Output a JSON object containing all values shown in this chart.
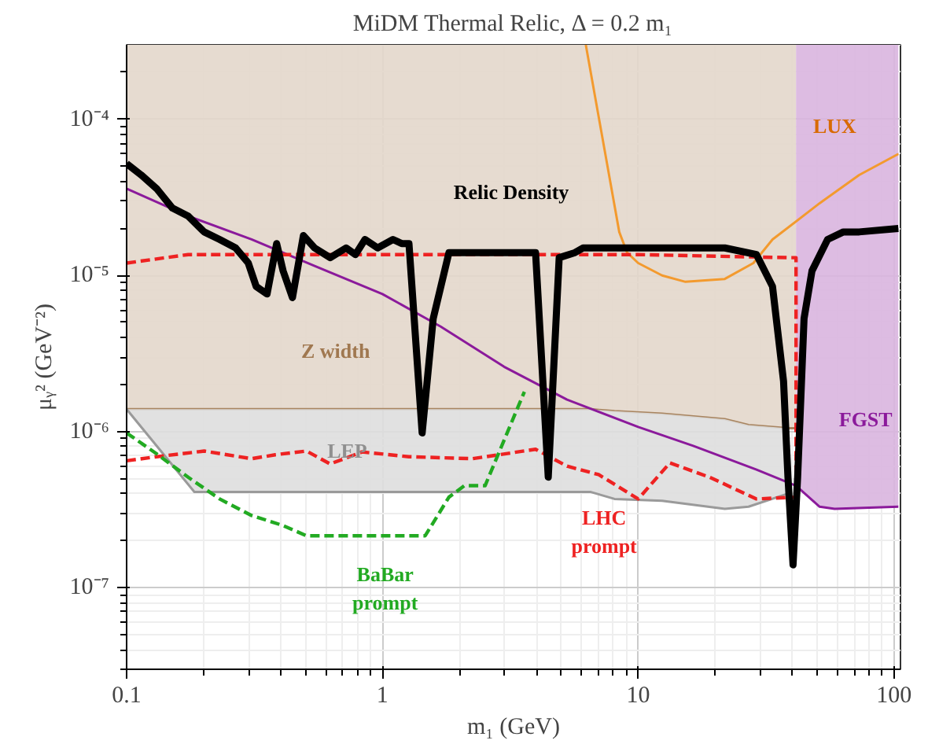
{
  "chart_data": {
    "type": "line",
    "title": "MiDM Thermal Relic, Δ = 0.2 m₁",
    "xlabel": "m₁ (GeV)",
    "ylabel": "μᵧ² (GeV⁻²)",
    "log": "xy",
    "grid": true,
    "xlim": [
      0.1,
      106
    ],
    "ylim": [
      3e-08,
      0.0003
    ],
    "xticks": [
      {
        "value": 0.1,
        "label": "0.1"
      },
      1,
      10,
      100
    ],
    "yticks": [
      {
        "value": 1e-07,
        "label": "10⁻⁷"
      },
      {
        "value": 1e-06,
        "label": "10⁻⁶"
      },
      {
        "value": 1e-05,
        "label": "10⁻⁵"
      },
      {
        "value": 0.0001,
        "label": "10⁻⁴"
      }
    ],
    "series": [
      {
        "color": "#a8845f",
        "line_style": "solid",
        "x": [
          0.1,
          0.184,
          6.53,
          8.08,
          12.4,
          21.8,
          27.0,
          38.5,
          41.4
        ],
        "values": [
          1.39e-06,
          1.39e-06,
          1.39e-06,
          1.35e-06,
          1.3e-06,
          1.2e-06,
          1.1e-06,
          1.05e-06,
          1.05e-06
        ],
        "lower": [
          1.39e-06,
          1.39e-06,
          1.39e-06,
          1.35e-06,
          1.3e-06,
          1.2e-06,
          1.1e-06,
          1.05e-06,
          1.05e-06
        ],
        "upper": [
          0.0003,
          0.0003,
          0.0003,
          0.0003,
          0.0003,
          0.0003,
          0.0003,
          0.0003,
          0.0003
        ]
      },
      {
        "color": "#9a9a9a",
        "line_style": "solid",
        "x": [
          0.1,
          0.184,
          6.53,
          8.08,
          12.4,
          21.8,
          27.0,
          38.5
        ],
        "values": [
          1.39e-06,
          4.1e-07,
          4.1e-07,
          3.7e-07,
          3.6e-07,
          3.2e-07,
          3.3e-07,
          4e-07
        ],
        "lower": [
          1.39e-06,
          4.1e-07,
          4.1e-07,
          3.7e-07,
          3.6e-07,
          3.2e-07,
          3.3e-07,
          4e-07
        ],
        "upper": [
          1.39e-06,
          1.39e-06,
          1.39e-06,
          1.35e-06,
          1.3e-06,
          1.2e-06,
          1.1e-06,
          1.05e-06
        ]
      },
      {
        "color": "#8b1a9b",
        "line_style": "solid",
        "x": [
          0.1,
          0.174,
          0.308,
          0.543,
          1,
          1.69,
          2.99,
          5.27,
          10,
          16.4,
          29.0,
          41.4,
          51.2,
          58.6,
          104
        ],
        "values": [
          3.6e-05,
          2.4e-05,
          1.7e-05,
          1.15e-05,
          7.6e-06,
          4.7e-06,
          2.6e-06,
          1.6e-06,
          1.07e-06,
          8.1e-07,
          5.7e-07,
          4.5e-07,
          3.3e-07,
          3.2e-07,
          3.3e-07
        ],
        "lower": [
          null,
          null,
          null,
          null,
          null,
          null,
          null,
          null,
          null,
          null,
          null,
          4.5e-07,
          3.3e-07,
          3.2e-07,
          3.3e-07
        ],
        "upper": [
          null,
          null,
          null,
          null,
          null,
          null,
          null,
          null,
          null,
          null,
          null,
          0.0003,
          0.0003,
          0.0003,
          0.0003
        ]
      },
      {
        "color": "#f39a2e",
        "line_style": "solid",
        "x": [
          6.24,
          8.43,
          9.05,
          10,
          12.4,
          15.3,
          21.8,
          28.2,
          33.5,
          51.2,
          73.1,
          104
        ],
        "values": [
          0.0003,
          1.9e-05,
          1.4e-05,
          1.2e-05,
          1e-05,
          9.1e-06,
          9.5e-06,
          1.2e-05,
          1.7e-05,
          2.9e-05,
          4.4e-05,
          6e-05
        ]
      },
      {
        "color": "#ee2222",
        "line_style": "dashed",
        "x": [
          0.1,
          0.174,
          10,
          38.5,
          41.4,
          41.4,
          29.0,
          19.0,
          13.3,
          10,
          7.0,
          5.27,
          3.97,
          2.25,
          1.27,
          0.832,
          0.625,
          0.505,
          0.381,
          0.308,
          0.201,
          0.131,
          0.1
        ],
        "values": [
          1.2e-05,
          1.36e-05,
          1.36e-05,
          1.3e-05,
          1.3e-05,
          3.8e-07,
          3.7e-07,
          5.1e-07,
          6.3e-07,
          3.7e-07,
          5.3e-07,
          6e-07,
          7.7e-07,
          6.7e-07,
          6.9e-07,
          7.4e-07,
          6.2e-07,
          7.5e-07,
          7.1e-07,
          6.7e-07,
          7.5e-07,
          6.9e-07,
          6.5e-07
        ]
      },
      {
        "color": "#22aa22",
        "line_style": "dashed",
        "x": [
          0.1,
          0.131,
          0.174,
          0.231,
          0.308,
          0.409,
          0.505,
          1.47,
          1.82,
          2.09,
          2.52,
          3.59
        ],
        "values": [
          9.8e-07,
          7.2e-07,
          5.1e-07,
          3.7e-07,
          2.9e-07,
          2.5e-07,
          2.15e-07,
          2.15e-07,
          3.8e-07,
          4.5e-07,
          4.5e-07,
          1.8e-06
        ]
      },
      {
        "color": "#000000",
        "line_style": "solid",
        "x": [
          0.1,
          0.114,
          0.131,
          0.151,
          0.174,
          0.201,
          0.231,
          0.267,
          0.299,
          0.321,
          0.354,
          0.386,
          0.409,
          0.445,
          0.491,
          0.543,
          0.625,
          0.721,
          0.785,
          0.855,
          0.958,
          1.1,
          1.19,
          1.27,
          1.43,
          1.58,
          1.82,
          2.25,
          3.97,
          4.45,
          4.91,
          5.66,
          6.08,
          16.4,
          21.8,
          29.0,
          33.5,
          37.0,
          38.5,
          40.3,
          42.0,
          44.5,
          47.8,
          55.0,
          63.4,
          73.1,
          104
        ],
        "values": [
          5.2e-05,
          4.4e-05,
          3.6e-05,
          2.7e-05,
          2.4e-05,
          1.9e-05,
          1.7e-05,
          1.5e-05,
          1.2e-05,
          8.5e-06,
          7.6e-06,
          1.6e-05,
          1.07e-05,
          7.2e-06,
          1.8e-05,
          1.5e-05,
          1.3e-05,
          1.5e-05,
          1.36e-05,
          1.7e-05,
          1.5e-05,
          1.7e-05,
          1.6e-05,
          1.6e-05,
          9.8e-07,
          5.3e-06,
          1.4e-05,
          1.4e-05,
          1.4e-05,
          5.1e-07,
          1.3e-05,
          1.4e-05,
          1.5e-05,
          1.5e-05,
          1.5e-05,
          1.36e-05,
          8.5e-06,
          2.1e-06,
          5.1e-07,
          1.4e-07,
          5.1e-07,
          5.3e-06,
          1.07e-05,
          1.7e-05,
          1.9e-05,
          1.9e-05,
          2e-05
        ]
      }
    ],
    "annotations": [
      "Relic Density",
      "LUX",
      "Z width",
      "LEP",
      "FGST",
      "BaBar\nprompt",
      "LHC\nprompt"
    ]
  }
}
